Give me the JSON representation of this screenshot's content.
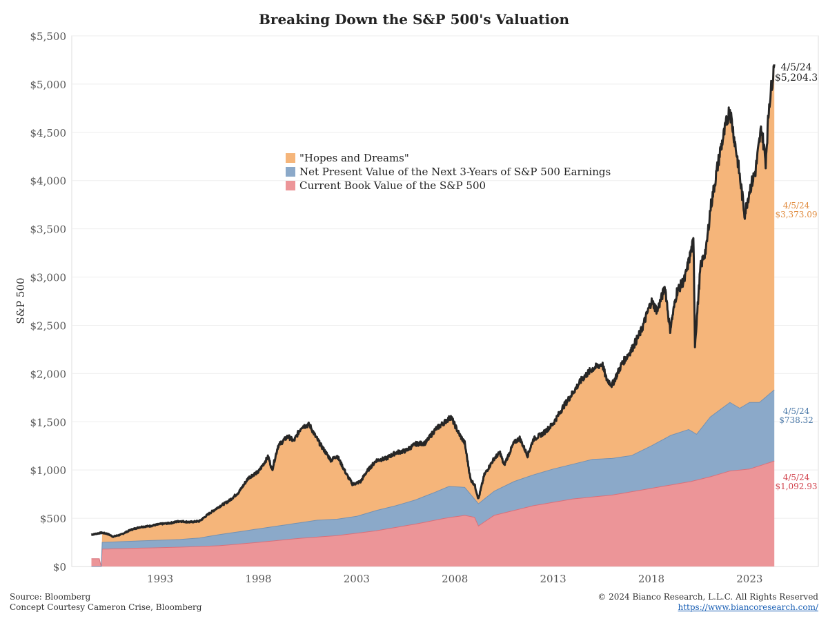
{
  "chart_data": {
    "type": "area",
    "title": "Breaking Down the S&P 500's Valuation",
    "ylabel": "S&P 500",
    "ylim": [
      0,
      5500
    ],
    "xlim": [
      1988.5,
      2026.5
    ],
    "yticks": [
      0,
      500,
      1000,
      1500,
      2000,
      2500,
      3000,
      3500,
      4000,
      4500,
      5000,
      5500
    ],
    "ytick_labels": [
      "$0",
      "$500",
      "$1,000",
      "$1,500",
      "$2,000",
      "$2,500",
      "$3,000",
      "$3,500",
      "$4,000",
      "$4,500",
      "$5,000",
      "$5,500"
    ],
    "xticks": [
      1993,
      1998,
      2003,
      2008,
      2013,
      2018,
      2023
    ],
    "xtick_labels": [
      "1993",
      "1998",
      "2003",
      "2008",
      "2013",
      "2018",
      "2023"
    ],
    "grid": "horizontal",
    "legend_position": "upper-center",
    "legend": [
      {
        "label": "\"Hopes and Dreams\"",
        "color": "#f5b57a"
      },
      {
        "label": "Net Present Value of the Next 3-Years of S&P 500 Earnings",
        "color": "#8ba9c9"
      },
      {
        "label": "Current Book Value of the S&P 500",
        "color": "#ec9598"
      }
    ],
    "colors": {
      "hopes": "#f5b57a",
      "npv": "#8ba9c9",
      "book": "#ec9598",
      "book_line": "#d9707a",
      "npv_line": "#7391b3",
      "price_line": "#262626",
      "end_label_price": "#222222",
      "end_label_hopes": "#e08a3c",
      "end_label_npv": "#4a78a8",
      "end_label_book": "#d1414b"
    },
    "series": [
      {
        "name": "S&P 500",
        "x": [
          1989.5,
          1990.0,
          1990.3,
          1990.6,
          1990.8,
          1991.0,
          1991.5,
          1992.0,
          1992.5,
          1993.0,
          1993.5,
          1994.0,
          1994.5,
          1995.0,
          1995.5,
          1996.0,
          1996.5,
          1997.0,
          1997.5,
          1997.8,
          1998.0,
          1998.5,
          1998.7,
          1999.0,
          1999.5,
          1999.8,
          2000.2,
          2000.6,
          2000.9,
          2001.2,
          2001.7,
          2002.0,
          2002.5,
          2002.8,
          2003.2,
          2003.5,
          2004.0,
          2004.5,
          2005.0,
          2005.5,
          2006.0,
          2006.5,
          2007.0,
          2007.5,
          2007.8,
          2008.2,
          2008.5,
          2008.8,
          2009.0,
          2009.2,
          2009.5,
          2010.0,
          2010.3,
          2010.5,
          2011.0,
          2011.3,
          2011.7,
          2012.0,
          2012.5,
          2013.0,
          2013.5,
          2014.0,
          2014.5,
          2015.0,
          2015.5,
          2015.7,
          2016.0,
          2016.5,
          2017.0,
          2017.5,
          2018.0,
          2018.3,
          2018.7,
          2018.95,
          2019.3,
          2019.7,
          2020.0,
          2020.15,
          2020.22,
          2020.5,
          2020.8,
          2021.0,
          2021.5,
          2021.99,
          2022.4,
          2022.75,
          2023.0,
          2023.3,
          2023.6,
          2023.82,
          2024.0,
          2024.26
        ],
        "values": [
          330,
          350,
          340,
          310,
          320,
          330,
          380,
          410,
          420,
          440,
          450,
          470,
          460,
          470,
          550,
          620,
          680,
          770,
          920,
          960,
          980,
          1140,
          1000,
          1250,
          1350,
          1300,
          1450,
          1470,
          1350,
          1250,
          1100,
          1150,
          950,
          850,
          880,
          980,
          1100,
          1120,
          1180,
          1200,
          1270,
          1280,
          1420,
          1500,
          1550,
          1380,
          1280,
          900,
          850,
          700,
          950,
          1120,
          1180,
          1050,
          1280,
          1330,
          1150,
          1320,
          1380,
          1480,
          1650,
          1800,
          1950,
          2050,
          2100,
          1950,
          1880,
          2100,
          2250,
          2450,
          2750,
          2650,
          2900,
          2450,
          2850,
          2980,
          3250,
          3380,
          2300,
          3100,
          3300,
          3700,
          4300,
          4750,
          4200,
          3650,
          3900,
          4100,
          4550,
          4200,
          4800,
          5204.3
        ]
      },
      {
        "name": "Net Present Value of the Next 3-Years of S&P 500 Earnings",
        "x": [
          1989.5,
          1990.0,
          1990.05,
          1992.0,
          1994.0,
          1995.0,
          1996.0,
          1998.0,
          2000.0,
          2001.0,
          2002.0,
          2003.0,
          2004.0,
          2005.0,
          2006.0,
          2007.0,
          2007.7,
          2008.5,
          2009.2,
          2010.0,
          2011.0,
          2012.0,
          2013.0,
          2014.0,
          2015.0,
          2016.0,
          2017.0,
          2018.0,
          2019.0,
          2019.9,
          2020.3,
          2021.0,
          2022.0,
          2022.5,
          2023.0,
          2023.5,
          2024.26
        ],
        "values": [
          0,
          0,
          250,
          265,
          280,
          295,
          330,
          390,
          450,
          480,
          490,
          520,
          580,
          630,
          690,
          770,
          830,
          820,
          650,
          780,
          880,
          950,
          1010,
          1060,
          1110,
          1120,
          1150,
          1250,
          1360,
          1420,
          1370,
          1550,
          1700,
          1640,
          1700,
          1700,
          1831.25
        ]
      },
      {
        "name": "Current Book Value of the S&P 500",
        "x": [
          1989.5,
          1989.9,
          1990.0,
          1990.05,
          1992.0,
          1994.0,
          1996.0,
          1998.0,
          2000.0,
          2002.0,
          2004.0,
          2006.0,
          2007.5,
          2008.5,
          2009.0,
          2009.2,
          2010.0,
          2012.0,
          2014.0,
          2016.0,
          2018.0,
          2020.0,
          2021.0,
          2022.0,
          2023.0,
          2024.26
        ],
        "values": [
          80,
          80,
          0,
          180,
          190,
          200,
          215,
          250,
          290,
          320,
          370,
          440,
          500,
          530,
          510,
          420,
          530,
          630,
          700,
          740,
          810,
          880,
          930,
          990,
          1010,
          1092.93
        ]
      }
    ],
    "end_labels": [
      {
        "date": "4/5/24",
        "value": "$5,204.3",
        "color_key": "end_label_price"
      },
      {
        "date": "4/5/24",
        "value": "$3,373.09",
        "color_key": "end_label_hopes"
      },
      {
        "date": "4/5/24",
        "value": "$738.32",
        "color_key": "end_label_npv"
      },
      {
        "date": "4/5/24",
        "value": "$1,092.93",
        "color_key": "end_label_book"
      }
    ]
  },
  "footer": {
    "source": "Source: Bloomberg",
    "concept": "Concept Courtesy Cameron Crise, Bloomberg",
    "copyright": "© 2024 Bianco Research, L.L.C. All Rights Reserved",
    "url": "https://www.biancoresearch.com/"
  }
}
